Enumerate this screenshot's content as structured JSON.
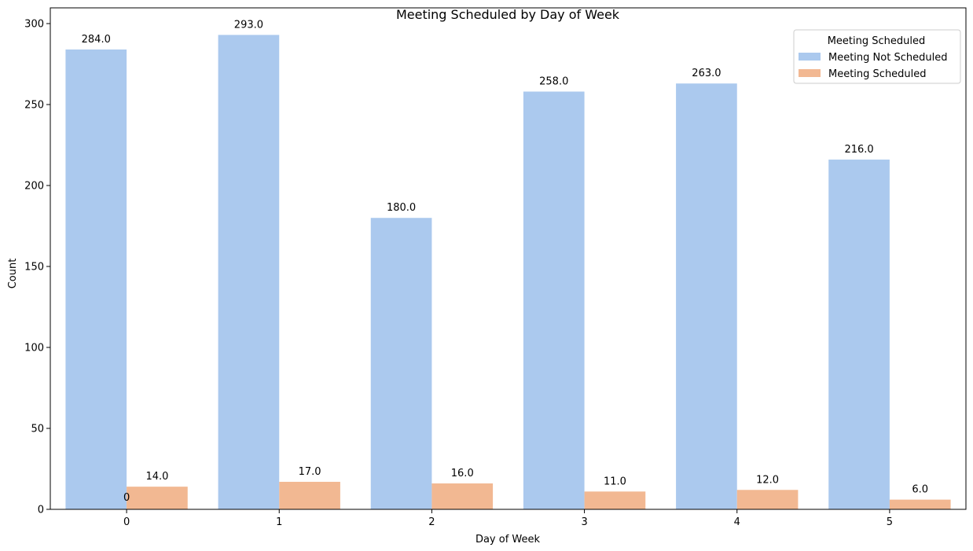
{
  "chart_data": {
    "type": "bar",
    "title": "Meeting Scheduled by Day of Week",
    "xlabel": "Day of Week",
    "ylabel": "Count",
    "categories": [
      "0",
      "1",
      "2",
      "3",
      "4",
      "5"
    ],
    "series": [
      {
        "name": "Meeting Not Scheduled",
        "color": "#abc9ee",
        "values": [
          284,
          293,
          180,
          258,
          263,
          216
        ],
        "labels": [
          "284.0",
          "293.0",
          "180.0",
          "258.0",
          "263.0",
          "216.0"
        ]
      },
      {
        "name": "Meeting Scheduled",
        "color": "#f2b892",
        "values": [
          14,
          17,
          16,
          11,
          12,
          6
        ],
        "labels": [
          "14.0",
          "17.0",
          "16.0",
          "11.0",
          "12.0",
          "6.0"
        ]
      }
    ],
    "ylim": [
      0,
      300
    ],
    "yticks": [
      0,
      50,
      100,
      150,
      200,
      250,
      300
    ],
    "ytick_labels": [
      "0",
      "50",
      "100",
      "150",
      "200",
      "250",
      "300"
    ],
    "legend": {
      "title": "Meeting Scheduled",
      "placement": "top-right"
    },
    "grid": false,
    "stray_annotation": {
      "category": "0",
      "value": 0,
      "text": "0"
    }
  }
}
